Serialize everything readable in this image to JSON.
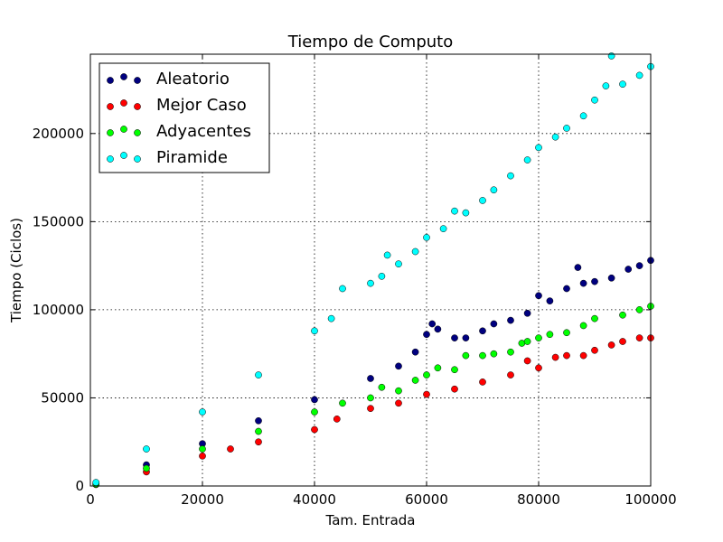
{
  "chart_data": {
    "type": "scatter",
    "title": "Tiempo de Computo",
    "xlabel": "Tam. Entrada",
    "ylabel": "Tiempo (Ciclos)",
    "xlim": [
      0,
      100000
    ],
    "ylim": [
      0,
      245000
    ],
    "xticks": [
      0,
      20000,
      40000,
      60000,
      80000,
      100000
    ],
    "yticks": [
      0,
      50000,
      100000,
      150000,
      200000
    ],
    "grid": true,
    "legend_position": "top-left",
    "series": [
      {
        "name": "Aleatorio",
        "color": "#00007f",
        "x": [
          1000,
          10000,
          20000,
          30000,
          40000,
          50000,
          55000,
          58000,
          60000,
          61000,
          62000,
          65000,
          67000,
          70000,
          72000,
          75000,
          78000,
          80000,
          82000,
          85000,
          87000,
          88000,
          90000,
          93000,
          96000,
          98000,
          100000
        ],
        "y": [
          1300,
          12000,
          24000,
          37000,
          49000,
          61000,
          68000,
          76000,
          86000,
          92000,
          89000,
          84000,
          84000,
          88000,
          92000,
          94000,
          98000,
          108000,
          105000,
          112000,
          124000,
          115000,
          116000,
          118000,
          123000,
          125000,
          128000
        ]
      },
      {
        "name": "Mejor Caso",
        "color": "#ff0000",
        "x": [
          1000,
          10000,
          20000,
          25000,
          30000,
          40000,
          44000,
          50000,
          55000,
          60000,
          65000,
          70000,
          75000,
          78000,
          80000,
          83000,
          85000,
          88000,
          90000,
          93000,
          95000,
          98000,
          100000
        ],
        "y": [
          800,
          8000,
          17000,
          21000,
          25000,
          32000,
          38000,
          44000,
          47000,
          52000,
          55000,
          59000,
          63000,
          71000,
          67000,
          73000,
          74000,
          74000,
          77000,
          80000,
          82000,
          84000,
          84000
        ]
      },
      {
        "name": "Adyacentes",
        "color": "#00ff00",
        "x": [
          1000,
          10000,
          20000,
          30000,
          40000,
          45000,
          50000,
          52000,
          55000,
          58000,
          60000,
          62000,
          65000,
          67000,
          70000,
          72000,
          75000,
          77000,
          78000,
          80000,
          82000,
          85000,
          88000,
          90000,
          95000,
          98000,
          100000
        ],
        "y": [
          1000,
          10000,
          21000,
          31000,
          42000,
          47000,
          50000,
          56000,
          54000,
          60000,
          63000,
          67000,
          66000,
          74000,
          74000,
          75000,
          76000,
          81000,
          82000,
          84000,
          86000,
          87000,
          91000,
          95000,
          97000,
          100000,
          102000
        ]
      },
      {
        "name": "Piramide",
        "color": "#00ffff",
        "x": [
          1000,
          10000,
          20000,
          30000,
          40000,
          43000,
          45000,
          50000,
          52000,
          53000,
          55000,
          58000,
          60000,
          63000,
          65000,
          67000,
          70000,
          72000,
          75000,
          78000,
          80000,
          83000,
          85000,
          88000,
          90000,
          92000,
          93000,
          95000,
          98000,
          100000
        ],
        "y": [
          2000,
          21000,
          42000,
          63000,
          88000,
          95000,
          112000,
          115000,
          119000,
          131000,
          126000,
          133000,
          141000,
          146000,
          156000,
          155000,
          162000,
          168000,
          176000,
          185000,
          192000,
          198000,
          203000,
          210000,
          219000,
          227000,
          244000,
          228000,
          233000,
          238000
        ]
      }
    ]
  }
}
